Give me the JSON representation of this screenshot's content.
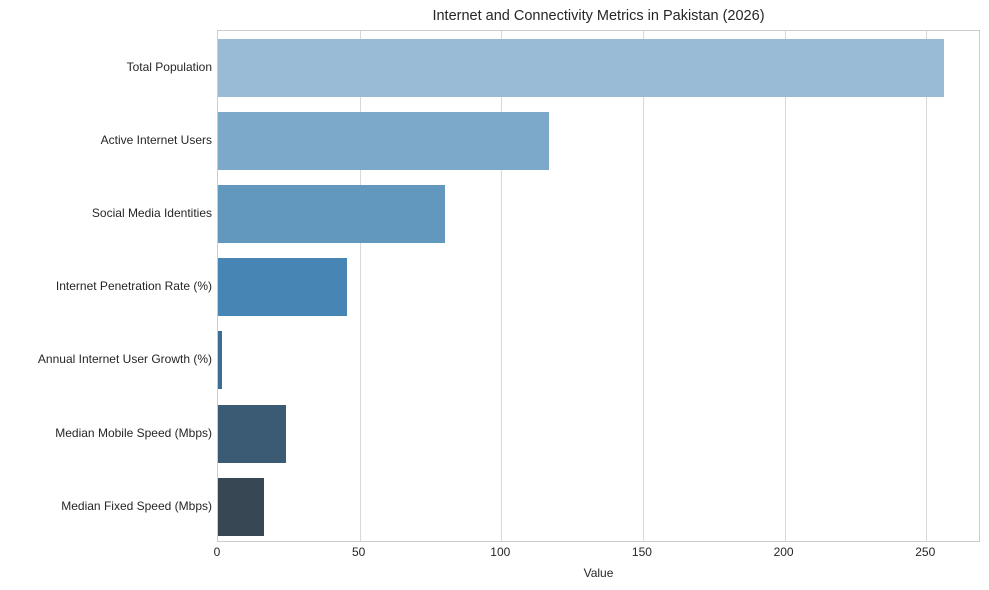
{
  "chart_data": {
    "type": "bar",
    "orientation": "horizontal",
    "title": "Internet and Connectivity Metrics in Pakistan (2026)",
    "xlabel": "Value",
    "ylabel": "",
    "xlim": [
      0,
      269
    ],
    "xticks": [
      "0",
      "50",
      "100",
      "150",
      "200",
      "250"
    ],
    "grid": true,
    "categories": [
      "Total Population",
      "Active Internet Users",
      "Social Media Identities",
      "Internet Penetration Rate (%)",
      "Annual Internet User Growth (%)",
      "Median Mobile Speed (Mbps)",
      "Median Fixed Speed (Mbps)"
    ],
    "values": [
      256.4,
      116.8,
      80.0,
      45.7,
      1.4,
      24.1,
      16.3
    ],
    "colors": [
      "#99bbd6",
      "#7ca8c9",
      "#6298bd",
      "#4785b4",
      "#3d6d91",
      "#3b5a73",
      "#384754"
    ]
  }
}
